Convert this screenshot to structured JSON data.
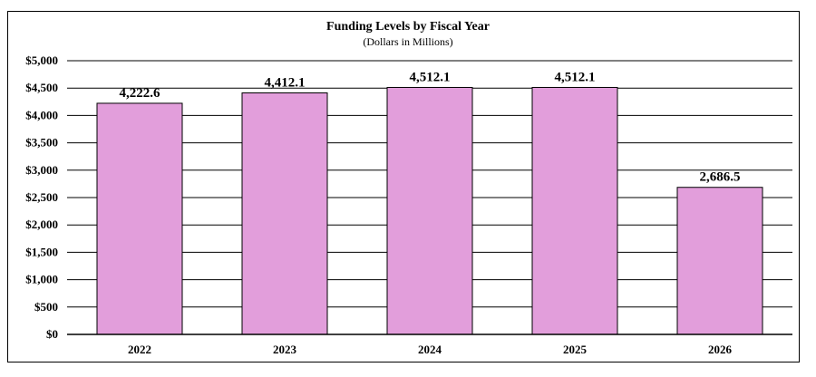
{
  "chart_data": {
    "type": "bar",
    "title": "Funding Levels by Fiscal Year",
    "subtitle": "(Dollars in Millions)",
    "xlabel": "",
    "ylabel": "",
    "categories": [
      "2022",
      "2023",
      "2024",
      "2025",
      "2026"
    ],
    "values": [
      4222.6,
      4412.1,
      4512.1,
      4512.1,
      2686.5
    ],
    "data_labels": [
      "4,222.6",
      "4,412.1",
      "4,512.1",
      "4,512.1",
      "2,686.5"
    ],
    "ylim": [
      0,
      5000
    ],
    "y_ticks": [
      0,
      500,
      1000,
      1500,
      2000,
      2500,
      3000,
      3500,
      4000,
      4500,
      5000
    ],
    "y_tick_labels": [
      "$0",
      "$500",
      "$1,000",
      "$1,500",
      "$2,000",
      "$2,500",
      "$3,000",
      "$3,500",
      "$4,000",
      "$4,500",
      "$5,000"
    ],
    "grid": true,
    "legend": "none",
    "colors": {
      "bar_fill": "#e29edb",
      "bar_stroke": "#000000",
      "grid": "#000000"
    }
  }
}
